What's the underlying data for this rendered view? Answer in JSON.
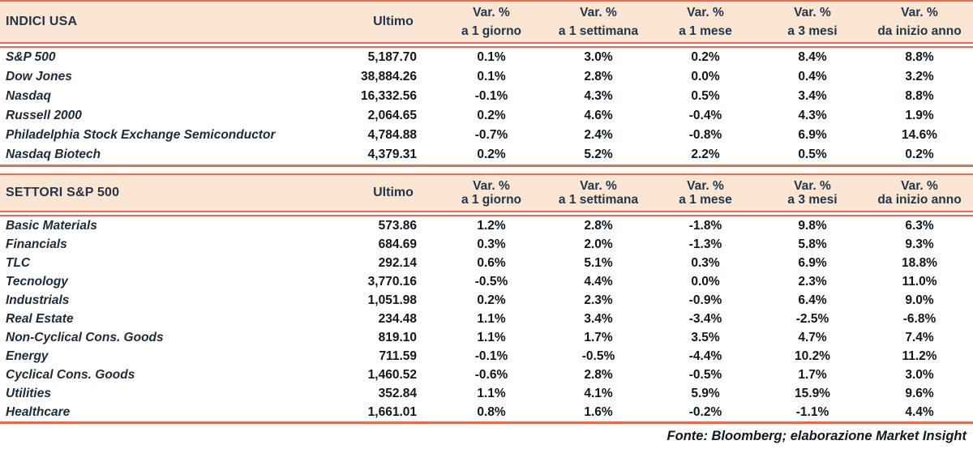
{
  "colors": {
    "accent_line": "#ec6a4d",
    "header_bg": "#fbe5d3",
    "header_text": "#20374a",
    "label_text": "#1c2b39",
    "value_text": "#10171e"
  },
  "columns": {
    "ultimo": "Ultimo",
    "var_top": "Var. %",
    "subs": [
      "a 1 giorno",
      "a 1 settimana",
      "a 1 mese",
      "a 3 mesi",
      "da inizio anno"
    ]
  },
  "sections": [
    {
      "title": "INDICI USA",
      "rows": [
        {
          "label": "S&P 500",
          "ultimo": "5,187.70",
          "values": [
            "0.1%",
            "3.0%",
            "0.2%",
            "8.4%",
            "8.8%"
          ]
        },
        {
          "label": "Dow Jones",
          "ultimo": "38,884.26",
          "values": [
            "0.1%",
            "2.8%",
            "0.0%",
            "0.4%",
            "3.2%"
          ]
        },
        {
          "label": "Nasdaq",
          "ultimo": "16,332.56",
          "values": [
            "-0.1%",
            "4.3%",
            "0.5%",
            "3.4%",
            "8.8%"
          ]
        },
        {
          "label": "Russell 2000",
          "ultimo": "2,064.65",
          "values": [
            "0.2%",
            "4.6%",
            "-0.4%",
            "4.3%",
            "1.9%"
          ]
        },
        {
          "label": "Philadelphia Stock Exchange Semiconductor",
          "ultimo": "4,784.88",
          "values": [
            "-0.7%",
            "2.4%",
            "-0.8%",
            "6.9%",
            "14.6%"
          ]
        },
        {
          "label": "Nasdaq Biotech",
          "ultimo": "4,379.31",
          "values": [
            "0.2%",
            "5.2%",
            "2.2%",
            "0.5%",
            "0.2%"
          ]
        }
      ]
    },
    {
      "title": "SETTORI S&P 500",
      "rows": [
        {
          "label": "Basic Materials",
          "ultimo": "573.86",
          "values": [
            "1.2%",
            "2.8%",
            "-1.8%",
            "9.8%",
            "6.3%"
          ]
        },
        {
          "label": "Financials",
          "ultimo": "684.69",
          "values": [
            "0.3%",
            "2.0%",
            "-1.3%",
            "5.8%",
            "9.3%"
          ]
        },
        {
          "label": "TLC",
          "ultimo": "292.14",
          "values": [
            "0.6%",
            "5.1%",
            "0.3%",
            "6.9%",
            "18.8%"
          ]
        },
        {
          "label": "Tecnology",
          "ultimo": "3,770.16",
          "values": [
            "-0.5%",
            "4.4%",
            "0.0%",
            "2.3%",
            "11.0%"
          ]
        },
        {
          "label": "Industrials",
          "ultimo": "1,051.98",
          "values": [
            "0.2%",
            "2.3%",
            "-0.9%",
            "6.4%",
            "9.0%"
          ]
        },
        {
          "label": "Real Estate",
          "ultimo": "234.48",
          "values": [
            "1.1%",
            "3.4%",
            "-3.4%",
            "-2.5%",
            "-6.8%"
          ]
        },
        {
          "label": "Non-Cyclical Cons. Goods",
          "ultimo": "819.10",
          "values": [
            "1.1%",
            "1.7%",
            "3.5%",
            "4.7%",
            "7.4%"
          ]
        },
        {
          "label": "Energy",
          "ultimo": "711.59",
          "values": [
            "-0.1%",
            "-0.5%",
            "-4.4%",
            "10.2%",
            "11.2%"
          ]
        },
        {
          "label": "Cyclical Cons. Goods",
          "ultimo": "1,460.52",
          "values": [
            "-0.6%",
            "2.8%",
            "-0.5%",
            "1.7%",
            "3.0%"
          ]
        },
        {
          "label": "Utilities",
          "ultimo": "352.84",
          "values": [
            "1.1%",
            "4.1%",
            "5.9%",
            "15.9%",
            "9.6%"
          ]
        },
        {
          "label": "Healthcare",
          "ultimo": "1,661.01",
          "values": [
            "0.8%",
            "1.6%",
            "-0.2%",
            "-1.1%",
            "4.4%"
          ]
        }
      ]
    }
  ],
  "footer": {
    "source_label": "Fonte: Bloomberg; elaborazione Market Insight"
  }
}
